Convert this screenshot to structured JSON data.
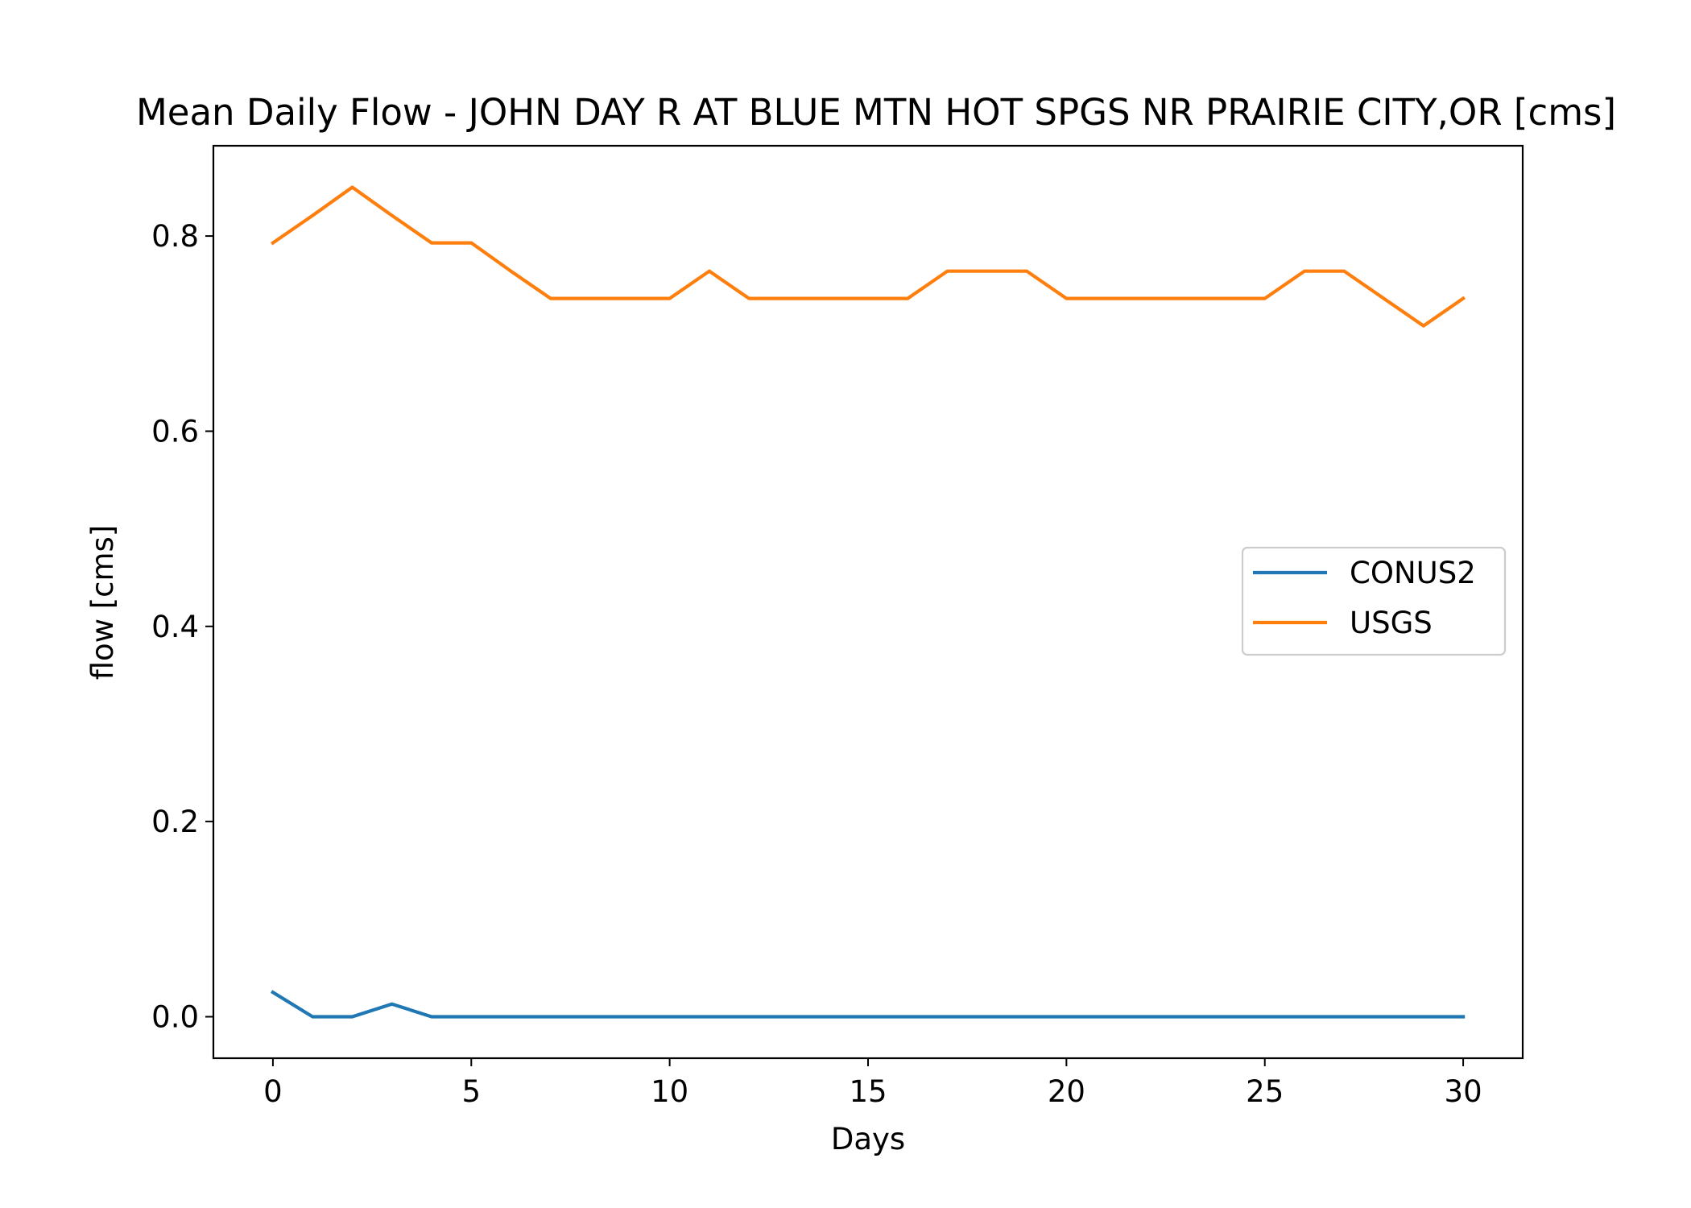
{
  "chart_data": {
    "type": "line",
    "title": "Mean Daily Flow - JOHN DAY R AT BLUE MTN HOT SPGS NR PRAIRIE CITY,OR [cms]",
    "xlabel": "Days",
    "ylabel": "flow [cms]",
    "xlim": [
      -1.5,
      31.5
    ],
    "ylim": [
      -0.0425,
      0.8925
    ],
    "xticks": [
      0,
      5,
      10,
      15,
      20,
      25,
      30
    ],
    "xtick_labels": [
      "0",
      "5",
      "10",
      "15",
      "20",
      "25",
      "30"
    ],
    "yticks": [
      0.0,
      0.2,
      0.4,
      0.6,
      0.8
    ],
    "ytick_labels": [
      "0.0",
      "0.2",
      "0.4",
      "0.6",
      "0.8"
    ],
    "grid": false,
    "legend_position": "center-right",
    "x": [
      0,
      1,
      2,
      3,
      4,
      5,
      6,
      7,
      8,
      9,
      10,
      11,
      12,
      13,
      14,
      15,
      16,
      17,
      18,
      19,
      20,
      21,
      22,
      23,
      24,
      25,
      26,
      27,
      28,
      29,
      30
    ],
    "series": [
      {
        "name": "CONUS2",
        "color": "#1f77b4",
        "values": [
          0.025,
          0.0,
          0.0,
          0.013,
          0.0,
          0.0,
          0.0,
          0.0,
          0.0,
          0.0,
          0.0,
          0.0,
          0.0,
          0.0,
          0.0,
          0.0,
          0.0,
          0.0,
          0.0,
          0.0,
          0.0,
          0.0,
          0.0,
          0.0,
          0.0,
          0.0,
          0.0,
          0.0,
          0.0,
          0.0,
          0.0
        ]
      },
      {
        "name": "USGS",
        "color": "#ff7f0e",
        "values": [
          0.793,
          0.821,
          0.85,
          0.821,
          0.793,
          0.793,
          0.764,
          0.736,
          0.736,
          0.736,
          0.736,
          0.764,
          0.736,
          0.736,
          0.736,
          0.736,
          0.736,
          0.764,
          0.764,
          0.764,
          0.736,
          0.736,
          0.736,
          0.736,
          0.736,
          0.736,
          0.764,
          0.764,
          0.736,
          0.708,
          0.736
        ]
      }
    ]
  }
}
